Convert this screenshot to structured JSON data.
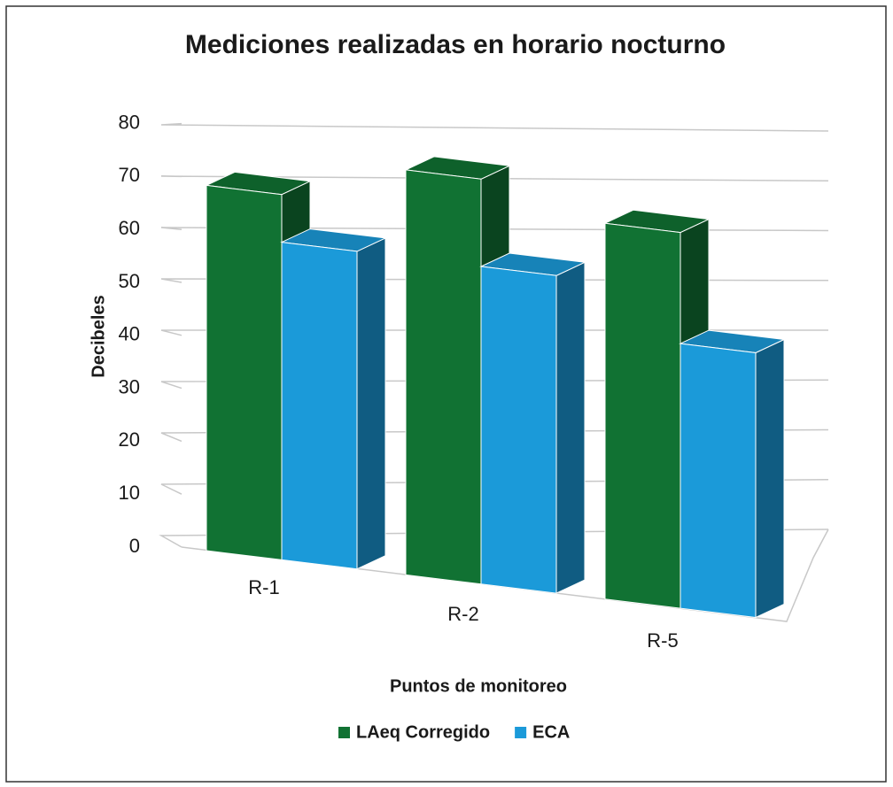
{
  "chart_data": {
    "type": "bar3d",
    "title": "Mediciones realizadas en horario nocturno",
    "categories": [
      "R-1",
      "R-2",
      "R-5"
    ],
    "series": [
      {
        "name": "LAeq Corregido",
        "color": "#117233",
        "values": [
          69,
          76.5,
          71
        ]
      },
      {
        "name": "ECA",
        "color": "#1b9ad9",
        "values": [
          60,
          60,
          50
        ]
      }
    ],
    "ylim": [
      0,
      80
    ],
    "yticks": [
      0,
      10,
      20,
      30,
      40,
      50,
      60,
      70,
      80
    ],
    "ylabel": "Decibeles",
    "xlabel": "Puntos de monitoreo",
    "grid": true,
    "legend": "bottom"
  }
}
